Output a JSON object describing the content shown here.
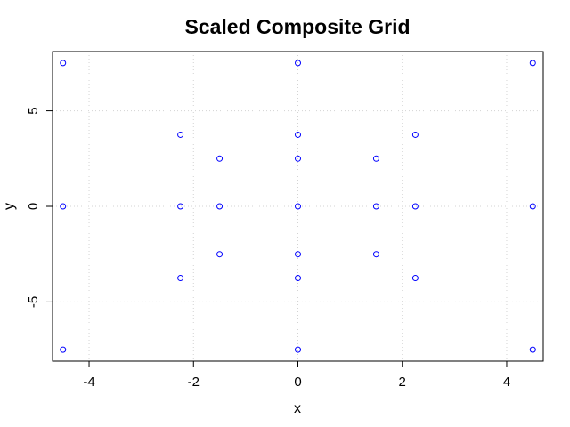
{
  "chart_data": {
    "type": "scatter",
    "title": "Scaled Composite Grid",
    "xlabel": "x",
    "ylabel": "y",
    "xlim": [
      -4.7,
      4.7
    ],
    "ylim": [
      -8.1,
      8.1
    ],
    "xticks": [
      -4,
      -2,
      0,
      2,
      4
    ],
    "yticks": [
      -5,
      0,
      5
    ],
    "xtick_labels": [
      "-4",
      "-2",
      "0",
      "2",
      "4"
    ],
    "ytick_labels": [
      "-5",
      "0",
      "5"
    ],
    "grid": true,
    "marker": "open-circle",
    "point_color": "#0000ff",
    "grid_color": "#d3d3d3",
    "points": [
      {
        "x": -4.5,
        "y": 7.5
      },
      {
        "x": 0,
        "y": 7.5
      },
      {
        "x": 4.5,
        "y": 7.5
      },
      {
        "x": -2.25,
        "y": 3.75
      },
      {
        "x": 0,
        "y": 3.75
      },
      {
        "x": 2.25,
        "y": 3.75
      },
      {
        "x": -1.5,
        "y": 2.5
      },
      {
        "x": 0,
        "y": 2.5
      },
      {
        "x": 1.5,
        "y": 2.5
      },
      {
        "x": -4.5,
        "y": 0
      },
      {
        "x": -2.25,
        "y": 0
      },
      {
        "x": -1.5,
        "y": 0
      },
      {
        "x": 0,
        "y": 0
      },
      {
        "x": 1.5,
        "y": 0
      },
      {
        "x": 2.25,
        "y": 0
      },
      {
        "x": 4.5,
        "y": 0
      },
      {
        "x": -1.5,
        "y": -2.5
      },
      {
        "x": 0,
        "y": -2.5
      },
      {
        "x": 1.5,
        "y": -2.5
      },
      {
        "x": -2.25,
        "y": -3.75
      },
      {
        "x": 0,
        "y": -3.75
      },
      {
        "x": 2.25,
        "y": -3.75
      },
      {
        "x": -4.5,
        "y": -7.5
      },
      {
        "x": 0,
        "y": -7.5
      },
      {
        "x": 4.5,
        "y": -7.5
      }
    ]
  }
}
